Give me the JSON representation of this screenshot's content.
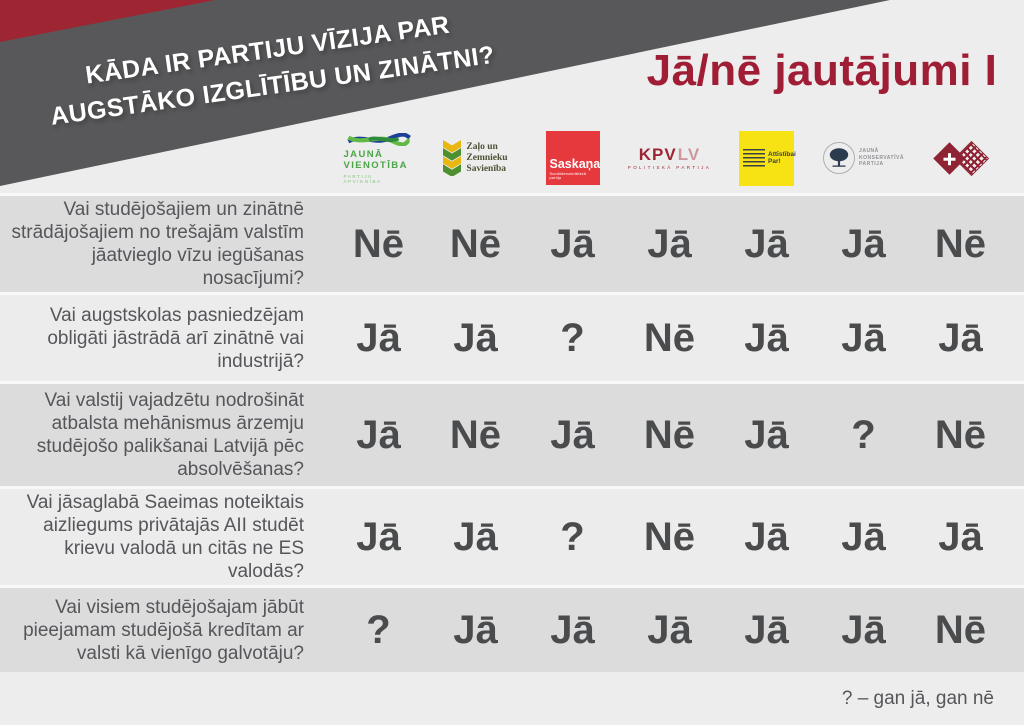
{
  "banner": {
    "line1": "KĀDA IR PARTIJU VĪZIJA PAR",
    "line2": "AUGSTĀKO IZGLĪTĪBU UN ZINĀTNI?"
  },
  "header": {
    "title": "Jā/nē jautājumi I"
  },
  "parties": [
    {
      "name": "Jaunā Vienotība",
      "line1": "JAUNĀ",
      "line2": "VIENOTĪBA",
      "sub": "PARTIJU APVIENĪBA"
    },
    {
      "name": "Zaļo un Zemnieku Savienība",
      "line1": "Zaļo un",
      "line2": "Zemnieku",
      "line3": "Savienība"
    },
    {
      "name": "Saskaņa",
      "label": "Saskaņa",
      "sub": "Sociāldemokrātiskā partija"
    },
    {
      "name": "KPV LV",
      "kpv": "KPV",
      "lv": "LV",
      "sub": "POLITISKĀ PARTIJA"
    },
    {
      "name": "Attīstībai/Par!",
      "line1": "Attīstībai",
      "line2": "Par!"
    },
    {
      "name": "Jaunā Konservatīvā Partija",
      "line1": "JAUNĀ",
      "line2": "KONSERVATĪVĀ",
      "line3": "PARTIJA"
    },
    {
      "name": "Nacionālā apvienība"
    }
  ],
  "chart_data": {
    "type": "table",
    "title": "Jā/nē jautājumi I",
    "columns": [
      "Jaunā Vienotība",
      "Zaļo un Zemnieku Savienība",
      "Saskaņa",
      "KPV LV",
      "Attīstībai/Par!",
      "Jaunā Konservatīvā Partija",
      "Nacionālā apvienība"
    ],
    "rows": [
      {
        "question": "Vai studējošajiem un zinātnē strādājošajiem no trešajām valstīm jāatvieglo vīzu iegūšanas nosacījumi?",
        "answers": [
          "Nē",
          "Nē",
          "Jā",
          "Jā",
          "Jā",
          "Jā",
          "Nē"
        ]
      },
      {
        "question": "Vai augstskolas pasniedzējam obligāti jāstrādā arī zinātnē vai industrijā?",
        "answers": [
          "Jā",
          "Jā",
          "?",
          "Nē",
          "Jā",
          "Jā",
          "Jā"
        ]
      },
      {
        "question": "Vai valstij vajadzētu nodrošināt atbalsta mehānismus ārzemju studējošo palikšanai Latvijā pēc absolvēšanas?",
        "answers": [
          "Jā",
          "Nē",
          "Jā",
          "Nē",
          "Jā",
          "?",
          "Nē"
        ]
      },
      {
        "question": "Vai jāsaglabā Saeimas noteiktais aizliegums privātajās AII studēt krievu valodā un citās ne ES valodās?",
        "answers": [
          "Jā",
          "Jā",
          "?",
          "Nē",
          "Jā",
          "Jā",
          "Jā"
        ]
      },
      {
        "question": "Vai visiem studējošajam jābūt pieejamam studējošā kredītam ar valsti kā vienīgo galvotāju?",
        "answers": [
          "?",
          "Jā",
          "Jā",
          "Jā",
          "Jā",
          "Jā",
          "Nē"
        ]
      }
    ],
    "legend": "? – gan jā, gan nē"
  },
  "footer": {
    "legend": "? – gan jā, gan nē"
  },
  "colors": {
    "banner_red": "#9e2532",
    "banner_gray": "#58585a",
    "title_red": "#a01e35",
    "row_dark": "#dcdcdc",
    "row_light": "#ececec",
    "answer_text": "#4a4b4d",
    "saskana_red": "#e6393e",
    "attistibai_yellow": "#f7e214",
    "na_red": "#8e2433",
    "jv_green": "#4aa546",
    "kpv_red": "#9e2533"
  }
}
